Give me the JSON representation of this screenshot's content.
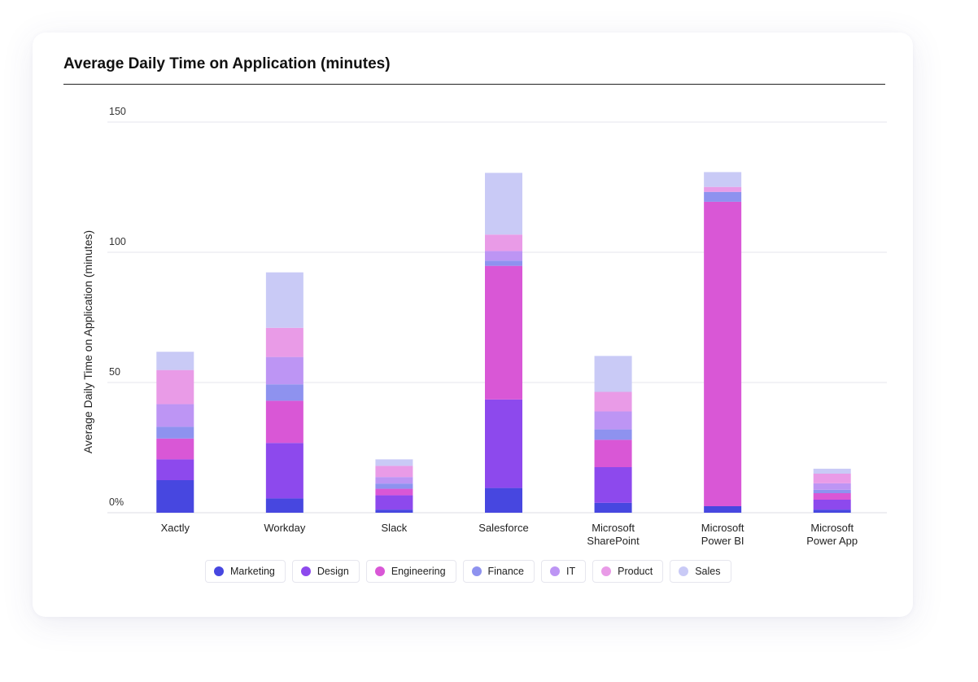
{
  "chart_data": {
    "type": "bar",
    "stacked": true,
    "title": "Average Daily Time on Application (minutes)",
    "xlabel": "",
    "ylabel": "Average Daily Time on Application (minutes)",
    "ylim": [
      0,
      150
    ],
    "yticks": [
      0,
      50,
      100,
      150
    ],
    "ytick_labels": [
      "0%",
      "50",
      "100",
      "150"
    ],
    "grid": true,
    "legend_position": "bottom",
    "categories": [
      [
        "Xactly"
      ],
      [
        "Workday"
      ],
      [
        "Slack"
      ],
      [
        "Salesforce"
      ],
      [
        "Microsoft",
        "SharePoint"
      ],
      [
        "Microsoft",
        "Power BI"
      ],
      [
        "Microsoft",
        "Power App"
      ]
    ],
    "series": [
      {
        "name": "Marketing",
        "color": "#4747e0",
        "values": [
          12.5,
          5.5,
          1.2,
          9.5,
          3.8,
          2.5,
          1.2
        ]
      },
      {
        "name": "Design",
        "color": "#8d49ed",
        "values": [
          8,
          21.3,
          5.5,
          34,
          13.7,
          0,
          3.8
        ]
      },
      {
        "name": "Engineering",
        "color": "#d957d6",
        "values": [
          8,
          16.2,
          2.5,
          51.3,
          10.5,
          116.9,
          2.5
        ]
      },
      {
        "name": "Finance",
        "color": "#8e92ef",
        "values": [
          4.5,
          6.3,
          2,
          2,
          4,
          3.8,
          1.3
        ]
      },
      {
        "name": "IT",
        "color": "#bd95f4",
        "values": [
          8.7,
          10.5,
          2.5,
          3.7,
          6.9,
          0,
          2.5
        ]
      },
      {
        "name": "Product",
        "color": "#e99be7",
        "values": [
          13.1,
          11.2,
          4.3,
          6.3,
          7.5,
          1.9,
          3.7
        ]
      },
      {
        "name": "Sales",
        "color": "#c9caf6",
        "values": [
          7,
          21.3,
          2.5,
          23.7,
          13.8,
          5.7,
          1.9
        ]
      }
    ]
  }
}
